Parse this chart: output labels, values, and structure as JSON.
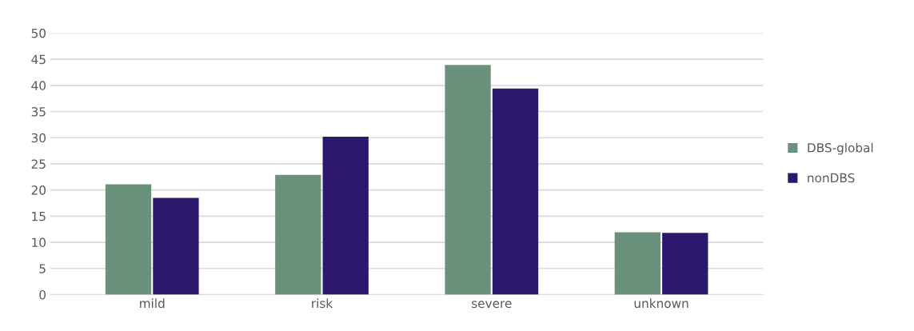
{
  "chart_data": {
    "type": "bar",
    "categories": [
      "mild",
      "risk",
      "severe",
      "unknown"
    ],
    "series": [
      {
        "name": "DBS-global",
        "color": "#6a917b",
        "values": [
          21.1,
          22.9,
          43.9,
          11.9
        ]
      },
      {
        "name": "nonDBS",
        "color": "#2c196e",
        "values": [
          18.5,
          30.2,
          39.4,
          11.8
        ]
      }
    ],
    "ylim": [
      0,
      50
    ],
    "yticks": [
      0,
      5,
      10,
      15,
      20,
      25,
      30,
      35,
      40,
      45,
      50
    ],
    "grid": "y",
    "legend": "right"
  }
}
